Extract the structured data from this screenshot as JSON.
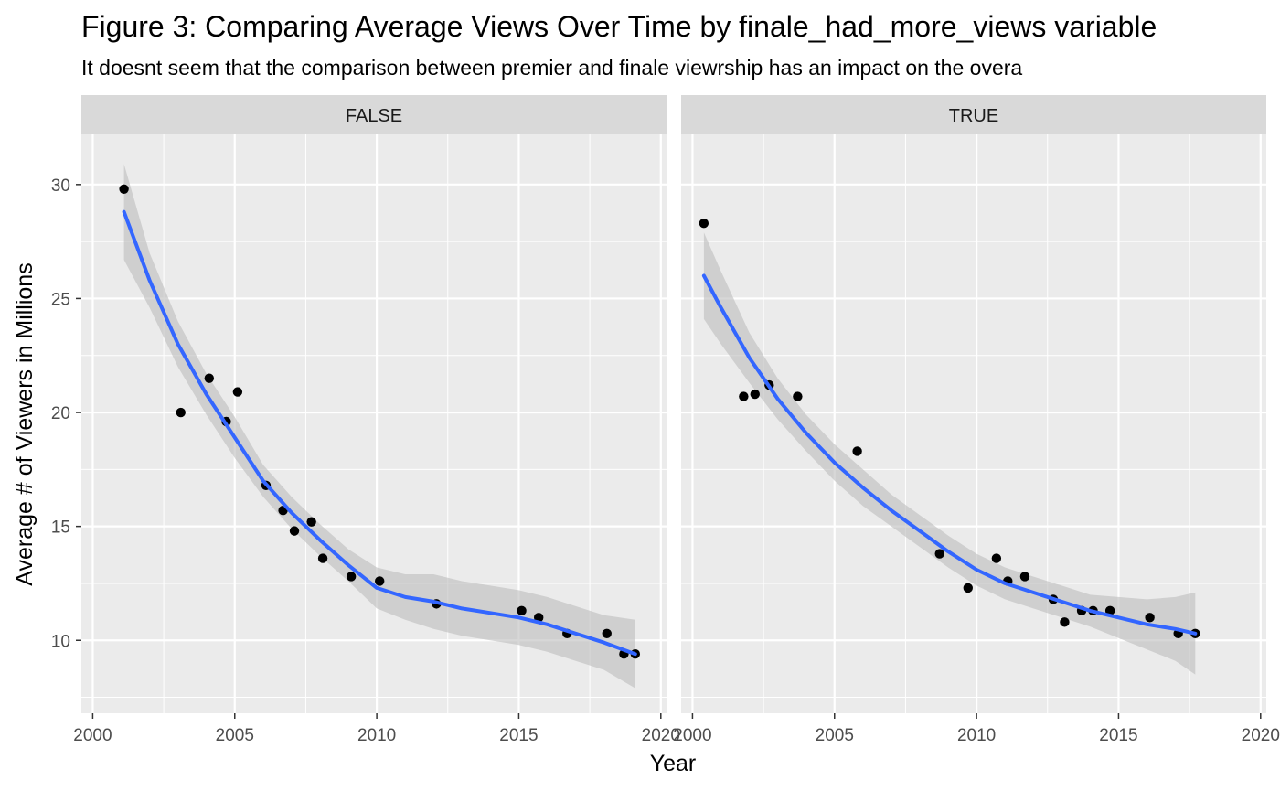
{
  "chart_data": {
    "type": "scatter",
    "title": "Figure 3: Comparing Average Views Over Time by finale_had_more_views variable",
    "subtitle": "It doesnt seem that the comparison between premier and finale viewrship has an impact on the overa",
    "xlabel": "Year",
    "ylabel": "Average # of Viewers in Millions",
    "xlim": [
      1999.6,
      2020.2
    ],
    "ylim": [
      6.8,
      32.2
    ],
    "x_ticks": [
      2000,
      2005,
      2010,
      2015,
      2020
    ],
    "y_ticks": [
      10,
      15,
      20,
      25,
      30
    ],
    "grid": true,
    "smooth_method": "loess",
    "colors": {
      "panel_bg": "#ebebeb",
      "strip_bg": "#d9d9d9",
      "grid": "#ffffff",
      "points": "#000000",
      "smooth_line": "#3366ff",
      "ribbon": "#bdbdbd"
    },
    "facets": [
      {
        "label": "FALSE",
        "points": [
          {
            "x": 2001.1,
            "y": 29.8
          },
          {
            "x": 2003.1,
            "y": 20.0
          },
          {
            "x": 2004.1,
            "y": 21.5
          },
          {
            "x": 2004.7,
            "y": 19.6
          },
          {
            "x": 2005.1,
            "y": 20.9
          },
          {
            "x": 2006.1,
            "y": 16.8
          },
          {
            "x": 2006.7,
            "y": 15.7
          },
          {
            "x": 2007.1,
            "y": 14.8
          },
          {
            "x": 2007.7,
            "y": 15.2
          },
          {
            "x": 2008.1,
            "y": 13.6
          },
          {
            "x": 2009.1,
            "y": 12.8
          },
          {
            "x": 2010.1,
            "y": 12.6
          },
          {
            "x": 2012.1,
            "y": 11.6
          },
          {
            "x": 2015.1,
            "y": 11.3
          },
          {
            "x": 2015.7,
            "y": 11.0
          },
          {
            "x": 2016.7,
            "y": 10.3
          },
          {
            "x": 2018.1,
            "y": 10.3
          },
          {
            "x": 2018.7,
            "y": 9.4
          },
          {
            "x": 2019.1,
            "y": 9.4
          }
        ],
        "smooth": {
          "x": [
            2001.1,
            2002,
            2003,
            2004,
            2005,
            2006,
            2007,
            2008,
            2009,
            2010,
            2011,
            2012,
            2013,
            2014,
            2015,
            2016,
            2017,
            2018,
            2019.1
          ],
          "y": [
            28.8,
            25.8,
            23.0,
            20.8,
            18.9,
            17.0,
            15.6,
            14.4,
            13.3,
            12.3,
            11.9,
            11.7,
            11.4,
            11.2,
            11.0,
            10.7,
            10.3,
            9.9,
            9.4
          ],
          "lower": [
            26.7,
            24.6,
            22.0,
            19.9,
            18.0,
            16.3,
            14.9,
            13.7,
            12.6,
            11.4,
            10.9,
            10.5,
            10.2,
            10.0,
            9.8,
            9.5,
            9.1,
            8.7,
            7.9
          ],
          "upper": [
            30.9,
            27.0,
            24.0,
            21.7,
            19.8,
            17.7,
            16.3,
            15.1,
            14.0,
            13.2,
            12.9,
            12.9,
            12.6,
            12.4,
            12.2,
            11.9,
            11.5,
            11.1,
            10.9
          ]
        }
      },
      {
        "label": "TRUE",
        "points": [
          {
            "x": 2000.4,
            "y": 28.3
          },
          {
            "x": 2001.8,
            "y": 20.7
          },
          {
            "x": 2002.2,
            "y": 20.8
          },
          {
            "x": 2002.7,
            "y": 21.2
          },
          {
            "x": 2003.7,
            "y": 20.7
          },
          {
            "x": 2005.8,
            "y": 18.3
          },
          {
            "x": 2008.7,
            "y": 13.8
          },
          {
            "x": 2009.7,
            "y": 12.3
          },
          {
            "x": 2010.7,
            "y": 13.6
          },
          {
            "x": 2011.1,
            "y": 12.6
          },
          {
            "x": 2011.7,
            "y": 12.8
          },
          {
            "x": 2012.7,
            "y": 11.8
          },
          {
            "x": 2013.1,
            "y": 10.8
          },
          {
            "x": 2013.7,
            "y": 11.3
          },
          {
            "x": 2014.1,
            "y": 11.3
          },
          {
            "x": 2014.7,
            "y": 11.3
          },
          {
            "x": 2016.1,
            "y": 11.0
          },
          {
            "x": 2017.1,
            "y": 10.3
          },
          {
            "x": 2017.7,
            "y": 10.3
          }
        ],
        "smooth": {
          "x": [
            2000.4,
            2001,
            2002,
            2003,
            2004,
            2005,
            2006,
            2007,
            2008,
            2009,
            2010,
            2011,
            2012,
            2013,
            2014,
            2015,
            2016,
            2017,
            2017.7
          ],
          "y": [
            26.0,
            24.6,
            22.4,
            20.6,
            19.1,
            17.8,
            16.7,
            15.7,
            14.8,
            13.9,
            13.1,
            12.5,
            12.1,
            11.7,
            11.3,
            11.0,
            10.7,
            10.5,
            10.3
          ],
          "lower": [
            24.1,
            23.0,
            21.3,
            19.7,
            18.3,
            17.0,
            15.9,
            15.0,
            14.1,
            13.2,
            12.4,
            11.8,
            11.4,
            11.0,
            10.6,
            10.1,
            9.6,
            9.1,
            8.5
          ],
          "upper": [
            27.9,
            26.2,
            23.5,
            21.5,
            19.9,
            18.6,
            17.5,
            16.4,
            15.5,
            14.6,
            13.8,
            13.2,
            12.8,
            12.4,
            12.0,
            11.9,
            11.8,
            11.9,
            12.1
          ]
        }
      }
    ]
  }
}
